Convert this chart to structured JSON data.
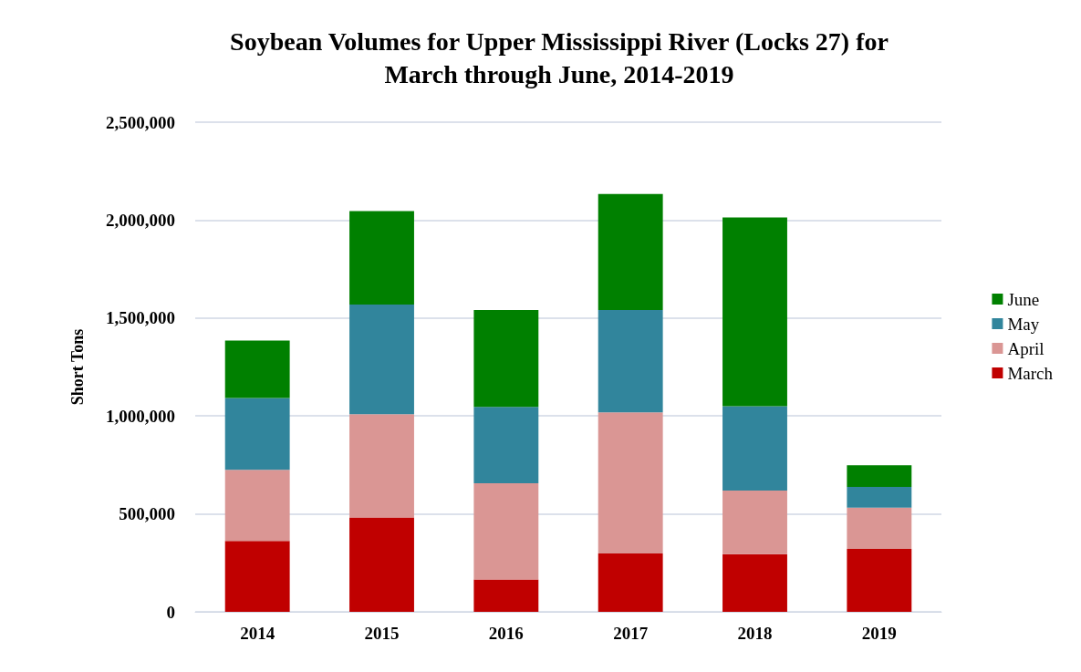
{
  "chart_data": {
    "type": "bar",
    "title": "Soybean Volumes for Upper Mississippi River (Locks 27) for\nMarch through June, 2014-2019",
    "ylabel": "Short Tons",
    "categories": [
      "2014",
      "2015",
      "2016",
      "2017",
      "2018",
      "2019"
    ],
    "stacked": true,
    "series": [
      {
        "name": "March",
        "color": "#c00000",
        "values": [
          362000,
          482000,
          165000,
          298000,
          294000,
          321000
        ]
      },
      {
        "name": "April",
        "color": "#da9694",
        "values": [
          363000,
          527000,
          491000,
          720000,
          325000,
          211000
        ]
      },
      {
        "name": "May",
        "color": "#31859c",
        "values": [
          367000,
          560000,
          390000,
          523000,
          431000,
          106000
        ]
      },
      {
        "name": "June",
        "color": "#008000",
        "values": [
          293000,
          477000,
          495000,
          592000,
          964000,
          110000
        ]
      }
    ],
    "ylim": [
      0,
      2500000
    ],
    "yticks": [
      0,
      {
        "value": 500000,
        "label": "500,000"
      },
      {
        "value": 1000000,
        "label": "1,000,000"
      },
      {
        "value": 1500000,
        "label": "1,500,000"
      },
      {
        "value": 2000000,
        "label": "2,000,000"
      },
      {
        "value": 2500000,
        "label": "2,500,000"
      }
    ],
    "grid": "y",
    "legend": "right"
  }
}
